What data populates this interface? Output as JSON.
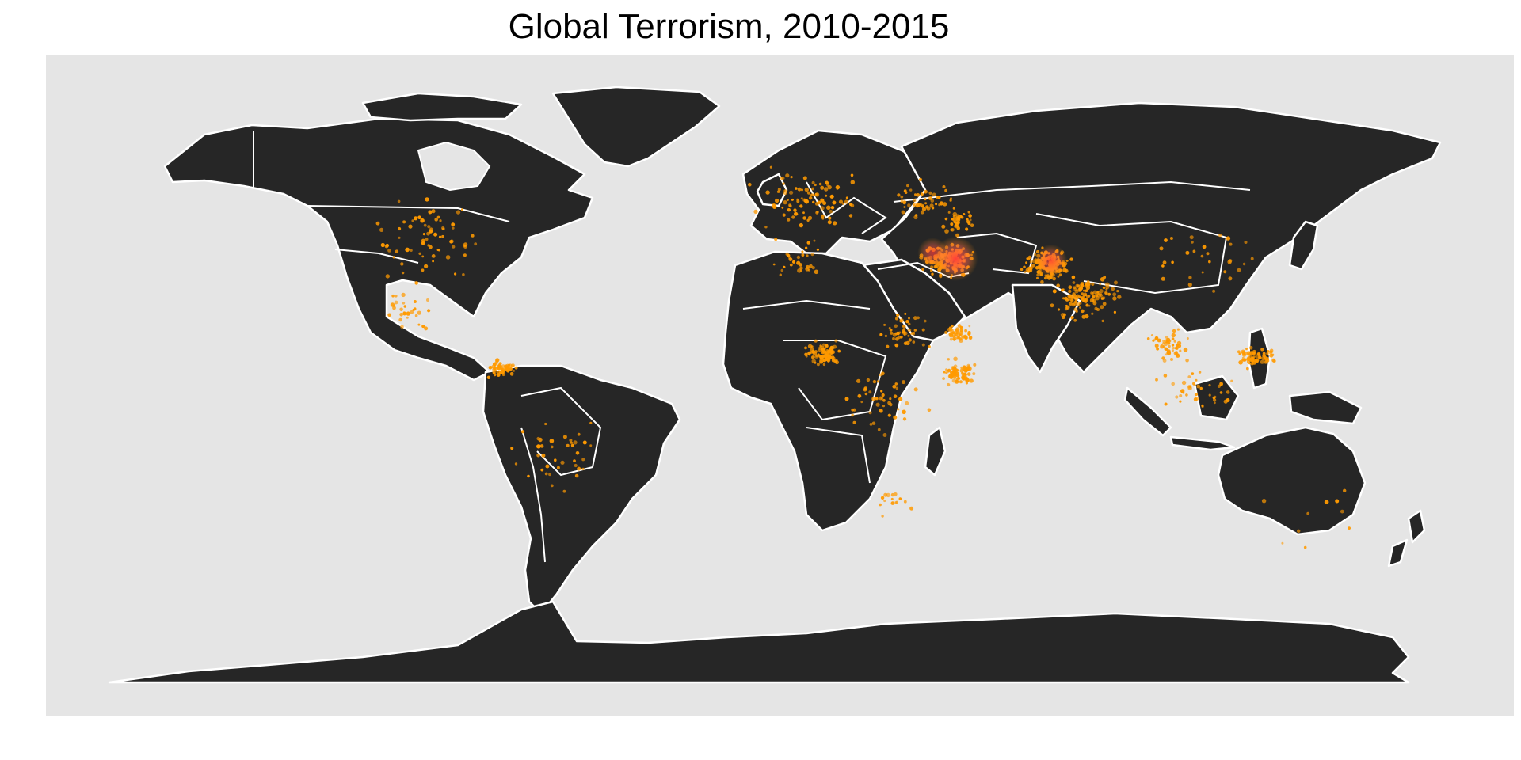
{
  "chart_data": {
    "type": "scatter",
    "title": "Global Terrorism, 2010-2015",
    "xlabel": "",
    "ylabel": "",
    "xlim": [
      -180,
      180
    ],
    "ylim": [
      -90,
      90
    ],
    "grid": false,
    "colors": {
      "background": "#e5e5e5",
      "land": "#262626",
      "borders": "#ffffff",
      "events": "#ff9a00",
      "density_peak": "#ff3b3b"
    },
    "hotspots": [
      {
        "lon": 44.0,
        "lat": 33.5,
        "intensity": 1.0
      },
      {
        "lon": 69.0,
        "lat": 33.0,
        "intensity": 0.6
      },
      {
        "lon": 38.0,
        "lat": 35.0,
        "intensity": 0.5
      }
    ],
    "event_clusters": [
      {
        "lon": 42,
        "lat": 33,
        "spread": 5,
        "count": 140
      },
      {
        "lon": 68,
        "lat": 32,
        "spread": 5,
        "count": 150
      },
      {
        "lon": 78,
        "lat": 24,
        "spread": 7,
        "count": 130
      },
      {
        "lon": 9,
        "lat": 10,
        "spread": 4,
        "count": 90
      },
      {
        "lon": 45,
        "lat": 5,
        "spread": 4,
        "count": 70
      },
      {
        "lon": 123,
        "lat": 9,
        "spread": 4,
        "count": 70
      },
      {
        "lon": -75,
        "lat": 6,
        "spread": 3,
        "count": 60
      },
      {
        "lon": 30,
        "lat": 15,
        "spread": 6,
        "count": 50
      },
      {
        "lon": 45,
        "lat": 15,
        "spread": 3,
        "count": 45
      },
      {
        "lon": 100,
        "lat": 12,
        "spread": 5,
        "count": 50
      },
      {
        "lon": 5,
        "lat": 48,
        "spread": 12,
        "count": 100
      },
      {
        "lon": 36,
        "lat": 48,
        "spread": 6,
        "count": 50
      },
      {
        "lon": 45,
        "lat": 43,
        "spread": 4,
        "count": 40
      },
      {
        "lon": -95,
        "lat": 38,
        "spread": 14,
        "count": 70
      },
      {
        "lon": -100,
        "lat": 21,
        "spread": 6,
        "count": 30
      },
      {
        "lon": 25,
        "lat": -2,
        "spread": 9,
        "count": 50
      },
      {
        "lon": 106,
        "lat": 0,
        "spread": 8,
        "count": 40
      },
      {
        "lon": 110,
        "lat": 34,
        "spread": 12,
        "count": 30
      },
      {
        "lon": -60,
        "lat": -15,
        "spread": 12,
        "count": 40
      },
      {
        "lon": 28,
        "lat": -27,
        "spread": 4,
        "count": 15
      },
      {
        "lon": 135,
        "lat": -28,
        "spread": 14,
        "count": 10
      },
      {
        "lon": 3,
        "lat": 33,
        "spread": 6,
        "count": 30
      }
    ]
  }
}
